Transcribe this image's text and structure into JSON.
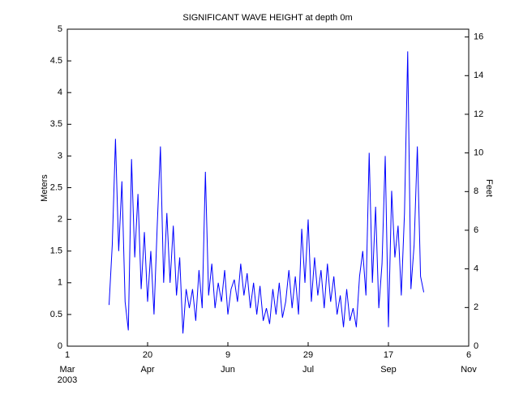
{
  "chart_data": {
    "type": "line",
    "title": "SIGNIFICANT WAVE HEIGHT at depth 0m",
    "y_label": "Meters",
    "y2_label": "Feet",
    "x_year_label": "2003",
    "xlim": [
      "2003-03-01",
      "2003-11-06"
    ],
    "xticks": [
      {
        "value": "2003-03-01",
        "label": "1",
        "month": "Mar"
      },
      {
        "value": "2003-04-20",
        "label": "20",
        "month": "Apr"
      },
      {
        "value": "2003-06-09",
        "label": "9",
        "month": "Jun"
      },
      {
        "value": "2003-07-29",
        "label": "29",
        "month": "Jul"
      },
      {
        "value": "2003-09-17",
        "label": "17",
        "month": "Sep"
      },
      {
        "value": "2003-11-06",
        "label": "6",
        "month": "Nov"
      }
    ],
    "ylim": [
      0,
      5
    ],
    "yticks": [
      0,
      0.5,
      1,
      1.5,
      2,
      2.5,
      3,
      3.5,
      4,
      4.5,
      5
    ],
    "y2lim": [
      0,
      16.404
    ],
    "y2ticks": [
      0,
      2,
      4,
      6,
      8,
      10,
      12,
      14,
      16
    ],
    "x": [
      "2003-03-27",
      "2003-03-29",
      "2003-03-31",
      "2003-04-02",
      "2003-04-04",
      "2003-04-06",
      "2003-04-08",
      "2003-04-10",
      "2003-04-12",
      "2003-04-14",
      "2003-04-16",
      "2003-04-18",
      "2003-04-20",
      "2003-04-22",
      "2003-04-24",
      "2003-04-26",
      "2003-04-28",
      "2003-04-30",
      "2003-05-02",
      "2003-05-04",
      "2003-05-06",
      "2003-05-08",
      "2003-05-10",
      "2003-05-12",
      "2003-05-14",
      "2003-05-16",
      "2003-05-18",
      "2003-05-20",
      "2003-05-22",
      "2003-05-24",
      "2003-05-26",
      "2003-05-28",
      "2003-05-30",
      "2003-06-01",
      "2003-06-03",
      "2003-06-05",
      "2003-06-07",
      "2003-06-09",
      "2003-06-11",
      "2003-06-13",
      "2003-06-15",
      "2003-06-17",
      "2003-06-19",
      "2003-06-21",
      "2003-06-23",
      "2003-06-25",
      "2003-06-27",
      "2003-06-29",
      "2003-07-01",
      "2003-07-03",
      "2003-07-05",
      "2003-07-07",
      "2003-07-09",
      "2003-07-11",
      "2003-07-13",
      "2003-07-15",
      "2003-07-17",
      "2003-07-19",
      "2003-07-21",
      "2003-07-23",
      "2003-07-25",
      "2003-07-27",
      "2003-07-29",
      "2003-07-31",
      "2003-08-02",
      "2003-08-04",
      "2003-08-06",
      "2003-08-08",
      "2003-08-10",
      "2003-08-12",
      "2003-08-14",
      "2003-08-16",
      "2003-08-18",
      "2003-08-20",
      "2003-08-22",
      "2003-08-24",
      "2003-08-26",
      "2003-08-28",
      "2003-08-30",
      "2003-09-01",
      "2003-09-03",
      "2003-09-05",
      "2003-09-07",
      "2003-09-09",
      "2003-09-11",
      "2003-09-13",
      "2003-09-15",
      "2003-09-17",
      "2003-09-19",
      "2003-09-21",
      "2003-09-23",
      "2003-09-25",
      "2003-09-27",
      "2003-09-29",
      "2003-10-01",
      "2003-10-03",
      "2003-10-05",
      "2003-10-07",
      "2003-10-09"
    ],
    "series": [
      {
        "color": "#0000ff",
        "values": [
          0.65,
          1.6,
          3.27,
          1.5,
          2.6,
          0.7,
          0.25,
          2.95,
          1.4,
          2.4,
          0.9,
          1.8,
          0.7,
          1.5,
          0.5,
          1.9,
          3.15,
          1.0,
          2.1,
          1.0,
          1.9,
          0.8,
          1.4,
          0.2,
          0.9,
          0.6,
          0.9,
          0.4,
          1.2,
          0.6,
          2.75,
          0.8,
          1.3,
          0.6,
          1.0,
          0.7,
          1.2,
          0.5,
          0.9,
          1.05,
          0.7,
          1.3,
          0.8,
          1.15,
          0.6,
          1.0,
          0.5,
          0.95,
          0.4,
          0.6,
          0.35,
          0.9,
          0.5,
          1.0,
          0.45,
          0.7,
          1.2,
          0.6,
          1.1,
          0.5,
          1.85,
          1.0,
          2.0,
          0.7,
          1.4,
          0.8,
          1.2,
          0.6,
          1.3,
          0.7,
          1.1,
          0.5,
          0.8,
          0.3,
          0.9,
          0.4,
          0.6,
          0.3,
          1.1,
          1.5,
          0.8,
          3.05,
          1.0,
          2.2,
          0.6,
          1.3,
          3.0,
          0.3,
          2.45,
          1.4,
          1.9,
          0.8,
          2.1,
          4.65,
          0.9,
          1.6,
          3.15,
          1.1,
          0.85
        ]
      }
    ]
  }
}
